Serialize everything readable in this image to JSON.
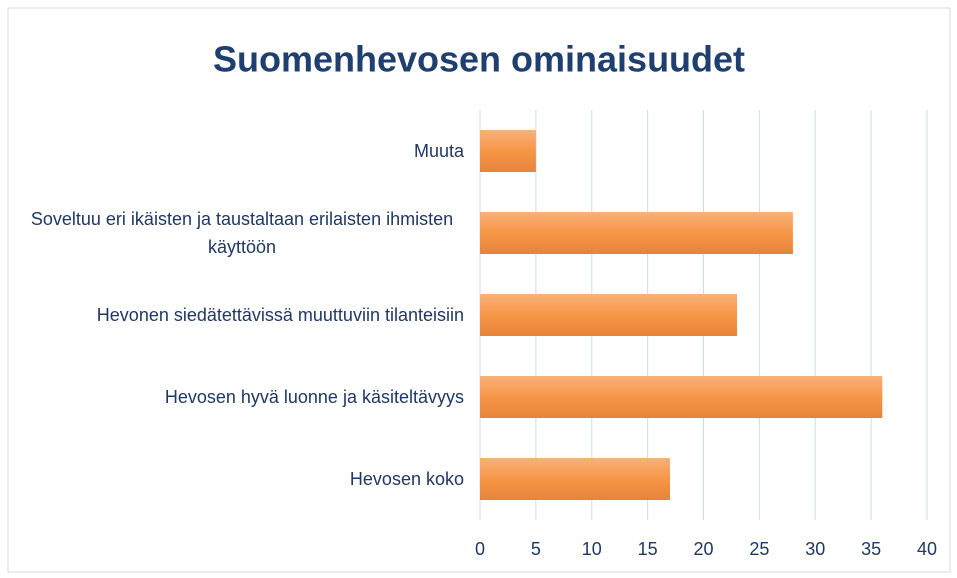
{
  "chart_data": {
    "type": "bar",
    "orientation": "horizontal",
    "title": "Suomenhevosen ominaisuudet",
    "categories": [
      "Muuta",
      "Soveltuu eri ikäisten ja taustaltaan erilaisten ihmisten käyttöön",
      "Hevonen siedätettävissä muuttuviin tilanteisiin",
      "Hevosen hyvä luonne ja käsiteltävyys",
      "Hevosen koko"
    ],
    "values": [
      5,
      28,
      23,
      36,
      17
    ],
    "color": "#f79646",
    "xlim": [
      0,
      40
    ],
    "xticks": [
      0,
      5,
      10,
      15,
      20,
      25,
      30,
      35,
      40
    ],
    "grid": true
  }
}
